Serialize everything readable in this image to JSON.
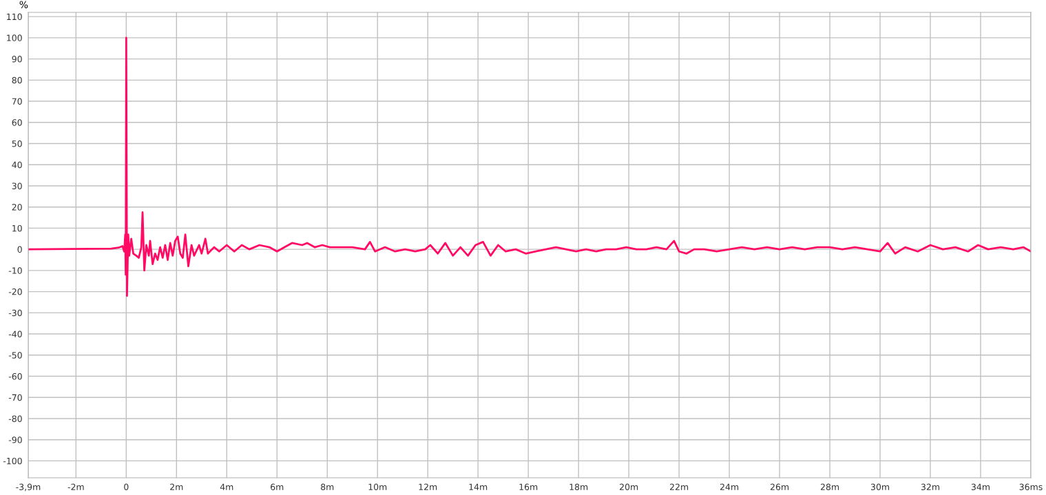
{
  "chart_data": {
    "type": "line",
    "ylabel": "%",
    "xlim": [
      -3.9,
      36
    ],
    "ylim": [
      -108,
      112
    ],
    "xticks": [
      {
        "value": -3.9,
        "label": "-3,9m"
      },
      {
        "value": -2,
        "label": "-2m"
      },
      0,
      {
        "value": 2,
        "label": "2m"
      },
      {
        "value": 4,
        "label": "4m"
      },
      {
        "value": 6,
        "label": "6m"
      },
      {
        "value": 8,
        "label": "8m"
      },
      {
        "value": 10,
        "label": "10m"
      },
      {
        "value": 12,
        "label": "12m"
      },
      {
        "value": 14,
        "label": "14m"
      },
      {
        "value": 16,
        "label": "16m"
      },
      {
        "value": 18,
        "label": "18m"
      },
      {
        "value": 20,
        "label": "20m"
      },
      {
        "value": 22,
        "label": "22m"
      },
      {
        "value": 24,
        "label": "24m"
      },
      {
        "value": 26,
        "label": "26m"
      },
      {
        "value": 28,
        "label": "28m"
      },
      {
        "value": 30,
        "label": "30m"
      },
      {
        "value": 32,
        "label": "32m"
      },
      {
        "value": 34,
        "label": "34m"
      },
      {
        "value": 36,
        "label": "36ms"
      }
    ],
    "yticks": [
      -100,
      -90,
      -80,
      -70,
      -60,
      -50,
      -40,
      -30,
      -20,
      -10,
      0,
      10,
      20,
      30,
      40,
      50,
      60,
      70,
      80,
      90,
      100,
      110
    ],
    "grid": true,
    "legend": false,
    "marker": "none",
    "line_style": "solid",
    "series": [
      {
        "color": "#ff0a64",
        "x": [
          -3.9,
          -0.6,
          -0.3,
          -0.15,
          -0.08,
          -0.04,
          -0.02,
          0.0,
          0.03,
          0.08,
          0.12,
          0.2,
          0.28,
          0.4,
          0.5,
          0.6,
          0.65,
          0.72,
          0.8,
          0.9,
          0.95,
          1.05,
          1.15,
          1.25,
          1.35,
          1.45,
          1.55,
          1.65,
          1.75,
          1.85,
          1.95,
          2.05,
          2.15,
          2.25,
          2.35,
          2.47,
          2.6,
          2.7,
          2.9,
          3.0,
          3.15,
          3.25,
          3.5,
          3.7,
          4.0,
          4.3,
          4.6,
          4.9,
          5.3,
          5.7,
          6.0,
          6.3,
          6.6,
          7.0,
          7.2,
          7.5,
          7.8,
          8.1,
          8.5,
          9.0,
          9.5,
          9.7,
          9.9,
          10.3,
          10.7,
          11.1,
          11.5,
          11.9,
          12.1,
          12.4,
          12.7,
          13.0,
          13.3,
          13.6,
          13.9,
          14.2,
          14.5,
          14.8,
          15.1,
          15.5,
          15.9,
          16.3,
          16.7,
          17.1,
          17.5,
          17.9,
          18.3,
          18.7,
          19.1,
          19.5,
          19.9,
          20.3,
          20.7,
          21.1,
          21.5,
          21.8,
          22.0,
          22.3,
          22.6,
          23.0,
          23.5,
          24.0,
          24.5,
          25.0,
          25.5,
          26.0,
          26.5,
          27.0,
          27.5,
          28.0,
          28.5,
          29.0,
          29.5,
          30.0,
          30.3,
          30.6,
          31.0,
          31.5,
          32.0,
          32.5,
          33.0,
          33.5,
          33.9,
          34.3,
          34.8,
          35.3,
          35.7,
          36.0
        ],
        "values": [
          0,
          0.3,
          0.8,
          1.5,
          -1,
          7,
          -12,
          100,
          -22,
          7,
          -3,
          5,
          -2,
          -3,
          -4,
          1,
          17.5,
          -10,
          2,
          -3,
          4,
          -7,
          -2,
          -5,
          1,
          -4,
          2,
          -5,
          3,
          -3,
          4,
          6,
          -2,
          -4,
          7,
          -8,
          2,
          -3,
          2,
          -2,
          5,
          -2,
          1,
          -1,
          2,
          -1,
          2,
          0,
          2,
          1,
          -1,
          1,
          3,
          2,
          3,
          1,
          2,
          1,
          1,
          1,
          0,
          3.5,
          -1,
          1,
          -1,
          0,
          -1,
          0,
          2,
          -2,
          3,
          -3,
          1,
          -3,
          2,
          3.5,
          -3,
          2,
          -1,
          0,
          -2,
          -1,
          0,
          1,
          0,
          -1,
          0,
          -1,
          0,
          0,
          1,
          0,
          0,
          1,
          0,
          4,
          -1,
          -2,
          0,
          0,
          -1,
          0,
          1,
          0,
          1,
          0,
          1,
          0,
          1,
          1,
          0,
          1,
          0,
          -1,
          3,
          -2,
          1,
          -1,
          2,
          0,
          1,
          -1,
          2,
          0,
          1,
          0,
          1,
          -1
        ]
      }
    ]
  }
}
